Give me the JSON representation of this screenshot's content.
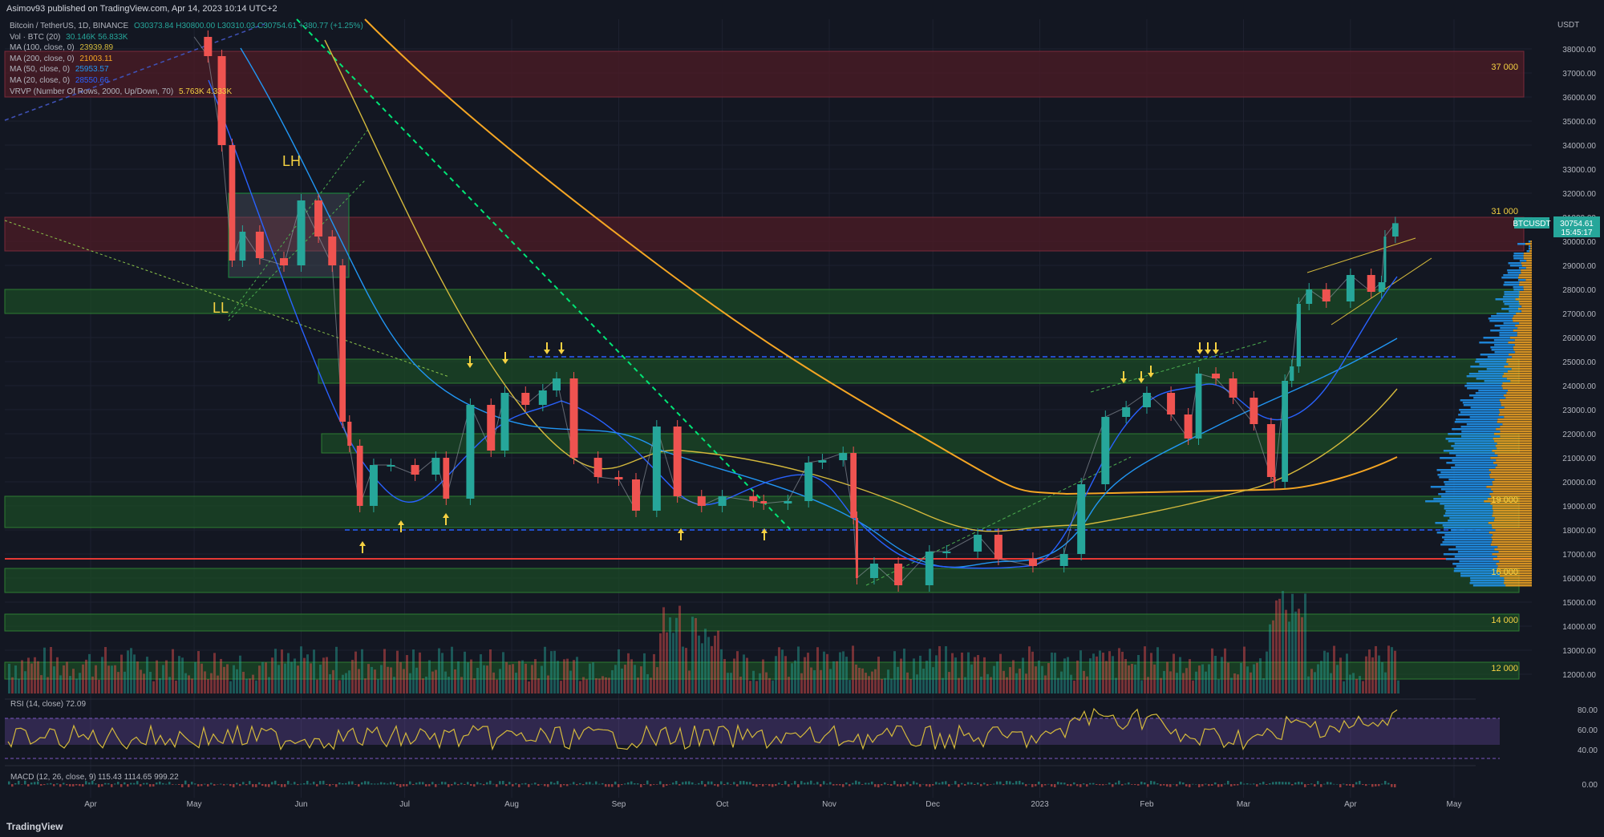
{
  "header": {
    "publisher": "Asimov93 published on TradingView.com, Apr 14, 2023 10:14 UTC+2"
  },
  "legend": {
    "symbol_line": "Bitcoin / TetherUS, 1D, BINANCE",
    "ohlc": "O30373.84 H30800.00 L30310.03 C30754.61 +380.77 (+1.25%)",
    "vol_label": "Vol · BTC (20)",
    "vol_values": "30.146K  56.833K",
    "ma100_label": "MA (100, close, 0)",
    "ma100_value": "23939.89",
    "ma200_label": "MA (200, close, 0)",
    "ma200_value": "21003.11",
    "ma50_label": "MA (50, close, 0)",
    "ma50_value": "25953.57",
    "ma20_label": "MA (20, close, 0)",
    "ma20_value": "28550.66",
    "vrvp_label": "VRVP (Number Of Rows, 2000, Up/Down, 70)",
    "vrvp_values": "5.763K  4.333K"
  },
  "price_box": {
    "symbol": "BTCUSDT",
    "price": "30754.61",
    "countdown": "15:45:17"
  },
  "rsi_label": "RSI (14, close)",
  "rsi_value": "72.09",
  "macd_label": "MACD (12, 26, close, 9)",
  "macd_values": "115.43  1114.65  999.22",
  "footer": {
    "brand": "TradingView"
  },
  "colors": {
    "background": "#131722",
    "up": "#26a69a",
    "down": "#ef5350",
    "annotation": "#f5d142",
    "resistance_zone": "#4a1b26",
    "support_zone": "#1b4a26",
    "ma20": "#2962ff",
    "ma50": "#2196f3",
    "ma100": "#d4b93c",
    "ma200": "#f5a623"
  },
  "chart_data": {
    "type": "line",
    "title": "Bitcoin / TetherUS, 1D, BINANCE",
    "currency": "USDT",
    "x_labels": [
      "Apr",
      "May",
      "Jun",
      "Jul",
      "Aug",
      "Sep",
      "Oct",
      "Nov",
      "Dec",
      "2023",
      "Feb",
      "Mar",
      "Apr",
      "May"
    ],
    "y_ticks": [
      12000,
      13000,
      14000,
      15000,
      16000,
      17000,
      18000,
      19000,
      20000,
      21000,
      22000,
      23000,
      24000,
      25000,
      26000,
      27000,
      28000,
      29000,
      30000,
      31000,
      32000,
      33000,
      34000,
      35000,
      36000,
      37000,
      38000
    ],
    "ylim": [
      11500,
      39000
    ],
    "series": [
      {
        "name": "BTCUSDT",
        "x": [
          "2022-05-01",
          "2022-05-05",
          "2022-05-09",
          "2022-05-12",
          "2022-05-15",
          "2022-05-20",
          "2022-05-27",
          "2022-06-01",
          "2022-06-06",
          "2022-06-10",
          "2022-06-13",
          "2022-06-15",
          "2022-06-18",
          "2022-06-22",
          "2022-06-27",
          "2022-07-04",
          "2022-07-10",
          "2022-07-13",
          "2022-07-20",
          "2022-07-26",
          "2022-07-30",
          "2022-08-05",
          "2022-08-10",
          "2022-08-14",
          "2022-08-19",
          "2022-08-26",
          "2022-09-01",
          "2022-09-06",
          "2022-09-12",
          "2022-09-18",
          "2022-09-25",
          "2022-10-01",
          "2022-10-10",
          "2022-10-13",
          "2022-10-20",
          "2022-10-26",
          "2022-10-30",
          "2022-11-05",
          "2022-11-08",
          "2022-11-09",
          "2022-11-14",
          "2022-11-21",
          "2022-11-30",
          "2022-12-05",
          "2022-12-14",
          "2022-12-20",
          "2022-12-30",
          "2023-01-08",
          "2023-01-13",
          "2023-01-20",
          "2023-01-26",
          "2023-02-01",
          "2023-02-08",
          "2023-02-13",
          "2023-02-16",
          "2023-02-21",
          "2023-02-26",
          "2023-03-04",
          "2023-03-09",
          "2023-03-10",
          "2023-03-13",
          "2023-03-15",
          "2023-03-17",
          "2023-03-20",
          "2023-03-25",
          "2023-04-01",
          "2023-04-07",
          "2023-04-10",
          "2023-04-11",
          "2023-04-14"
        ],
        "y": [
          38500,
          37700,
          34000,
          29200,
          30400,
          29300,
          29000,
          31700,
          30200,
          29000,
          22500,
          21500,
          19000,
          20700,
          20700,
          20300,
          21000,
          19300,
          23200,
          21300,
          23700,
          23200,
          23800,
          24300,
          21000,
          20200,
          20100,
          18800,
          22300,
          19400,
          19000,
          19400,
          19200,
          19100,
          19200,
          20800,
          20900,
          21200,
          18500,
          16000,
          16600,
          15700,
          17100,
          17100,
          17800,
          16800,
          16500,
          17000,
          19900,
          22700,
          23100,
          23700,
          22800,
          21800,
          24500,
          24300,
          23500,
          22400,
          20200,
          20000,
          24200,
          24800,
          27400,
          28000,
          27500,
          28600,
          27900,
          28300,
          30200,
          30754
        ]
      }
    ],
    "annotations": {
      "resistance_zones": [
        [
          36000,
          37900
        ],
        [
          29600,
          31000
        ]
      ],
      "support_zones": [
        [
          27000,
          28000
        ],
        [
          24100,
          25100
        ],
        [
          21200,
          22000
        ],
        [
          18100,
          19400
        ],
        [
          15400,
          16400
        ],
        [
          13800,
          14500
        ],
        [
          11800,
          12500
        ]
      ],
      "zone_labels": [
        "37 000",
        "31 000",
        "19 000",
        "16 000",
        "14 000",
        "12 000"
      ],
      "pattern_labels": [
        "LH",
        "LL"
      ],
      "red_line": 16800,
      "blue_dashed_lines": [
        25200,
        18000
      ]
    },
    "rsi": {
      "name": "RSI (14, close)",
      "value": 72.09,
      "levels": [
        80,
        60,
        40
      ],
      "band": [
        30,
        70
      ]
    },
    "macd": {
      "name": "MACD (12, 26, close, 9)",
      "zero": "0.00"
    }
  }
}
